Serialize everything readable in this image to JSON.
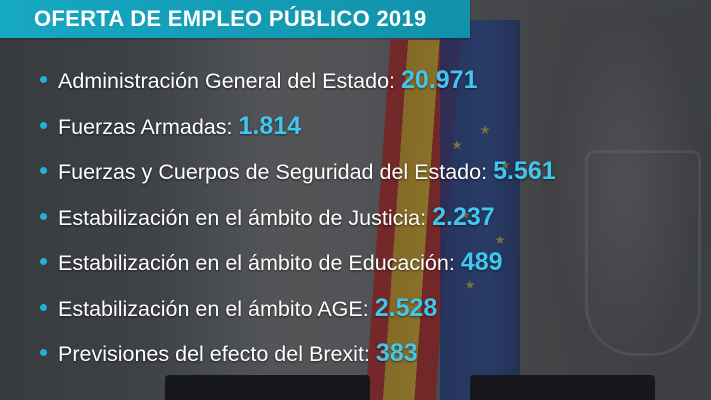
{
  "header": {
    "title": "OFERTA DE EMPLEO PÚBLICO 2019"
  },
  "items": [
    {
      "label": "Administración General del Estado:",
      "value": "20.971"
    },
    {
      "label": "Fuerzas Armadas:",
      "value": "1.814"
    },
    {
      "label": "Fuerzas y Cuerpos de Seguridad del Estado:",
      "value": "5.561"
    },
    {
      "label": "Estabilización en el ámbito de Justicia:",
      "value": "2.237"
    },
    {
      "label": "Estabilización en el ámbito de Educación:",
      "value": "489"
    },
    {
      "label": "Estabilización en el ámbito AGE:",
      "value": "2.528"
    },
    {
      "label": "Previsiones del efecto del Brexit:",
      "value": "383"
    }
  ],
  "colors": {
    "header_bg": "#16a8c2",
    "value_text": "#41c6ee",
    "bullet": "#1fb4d6"
  }
}
